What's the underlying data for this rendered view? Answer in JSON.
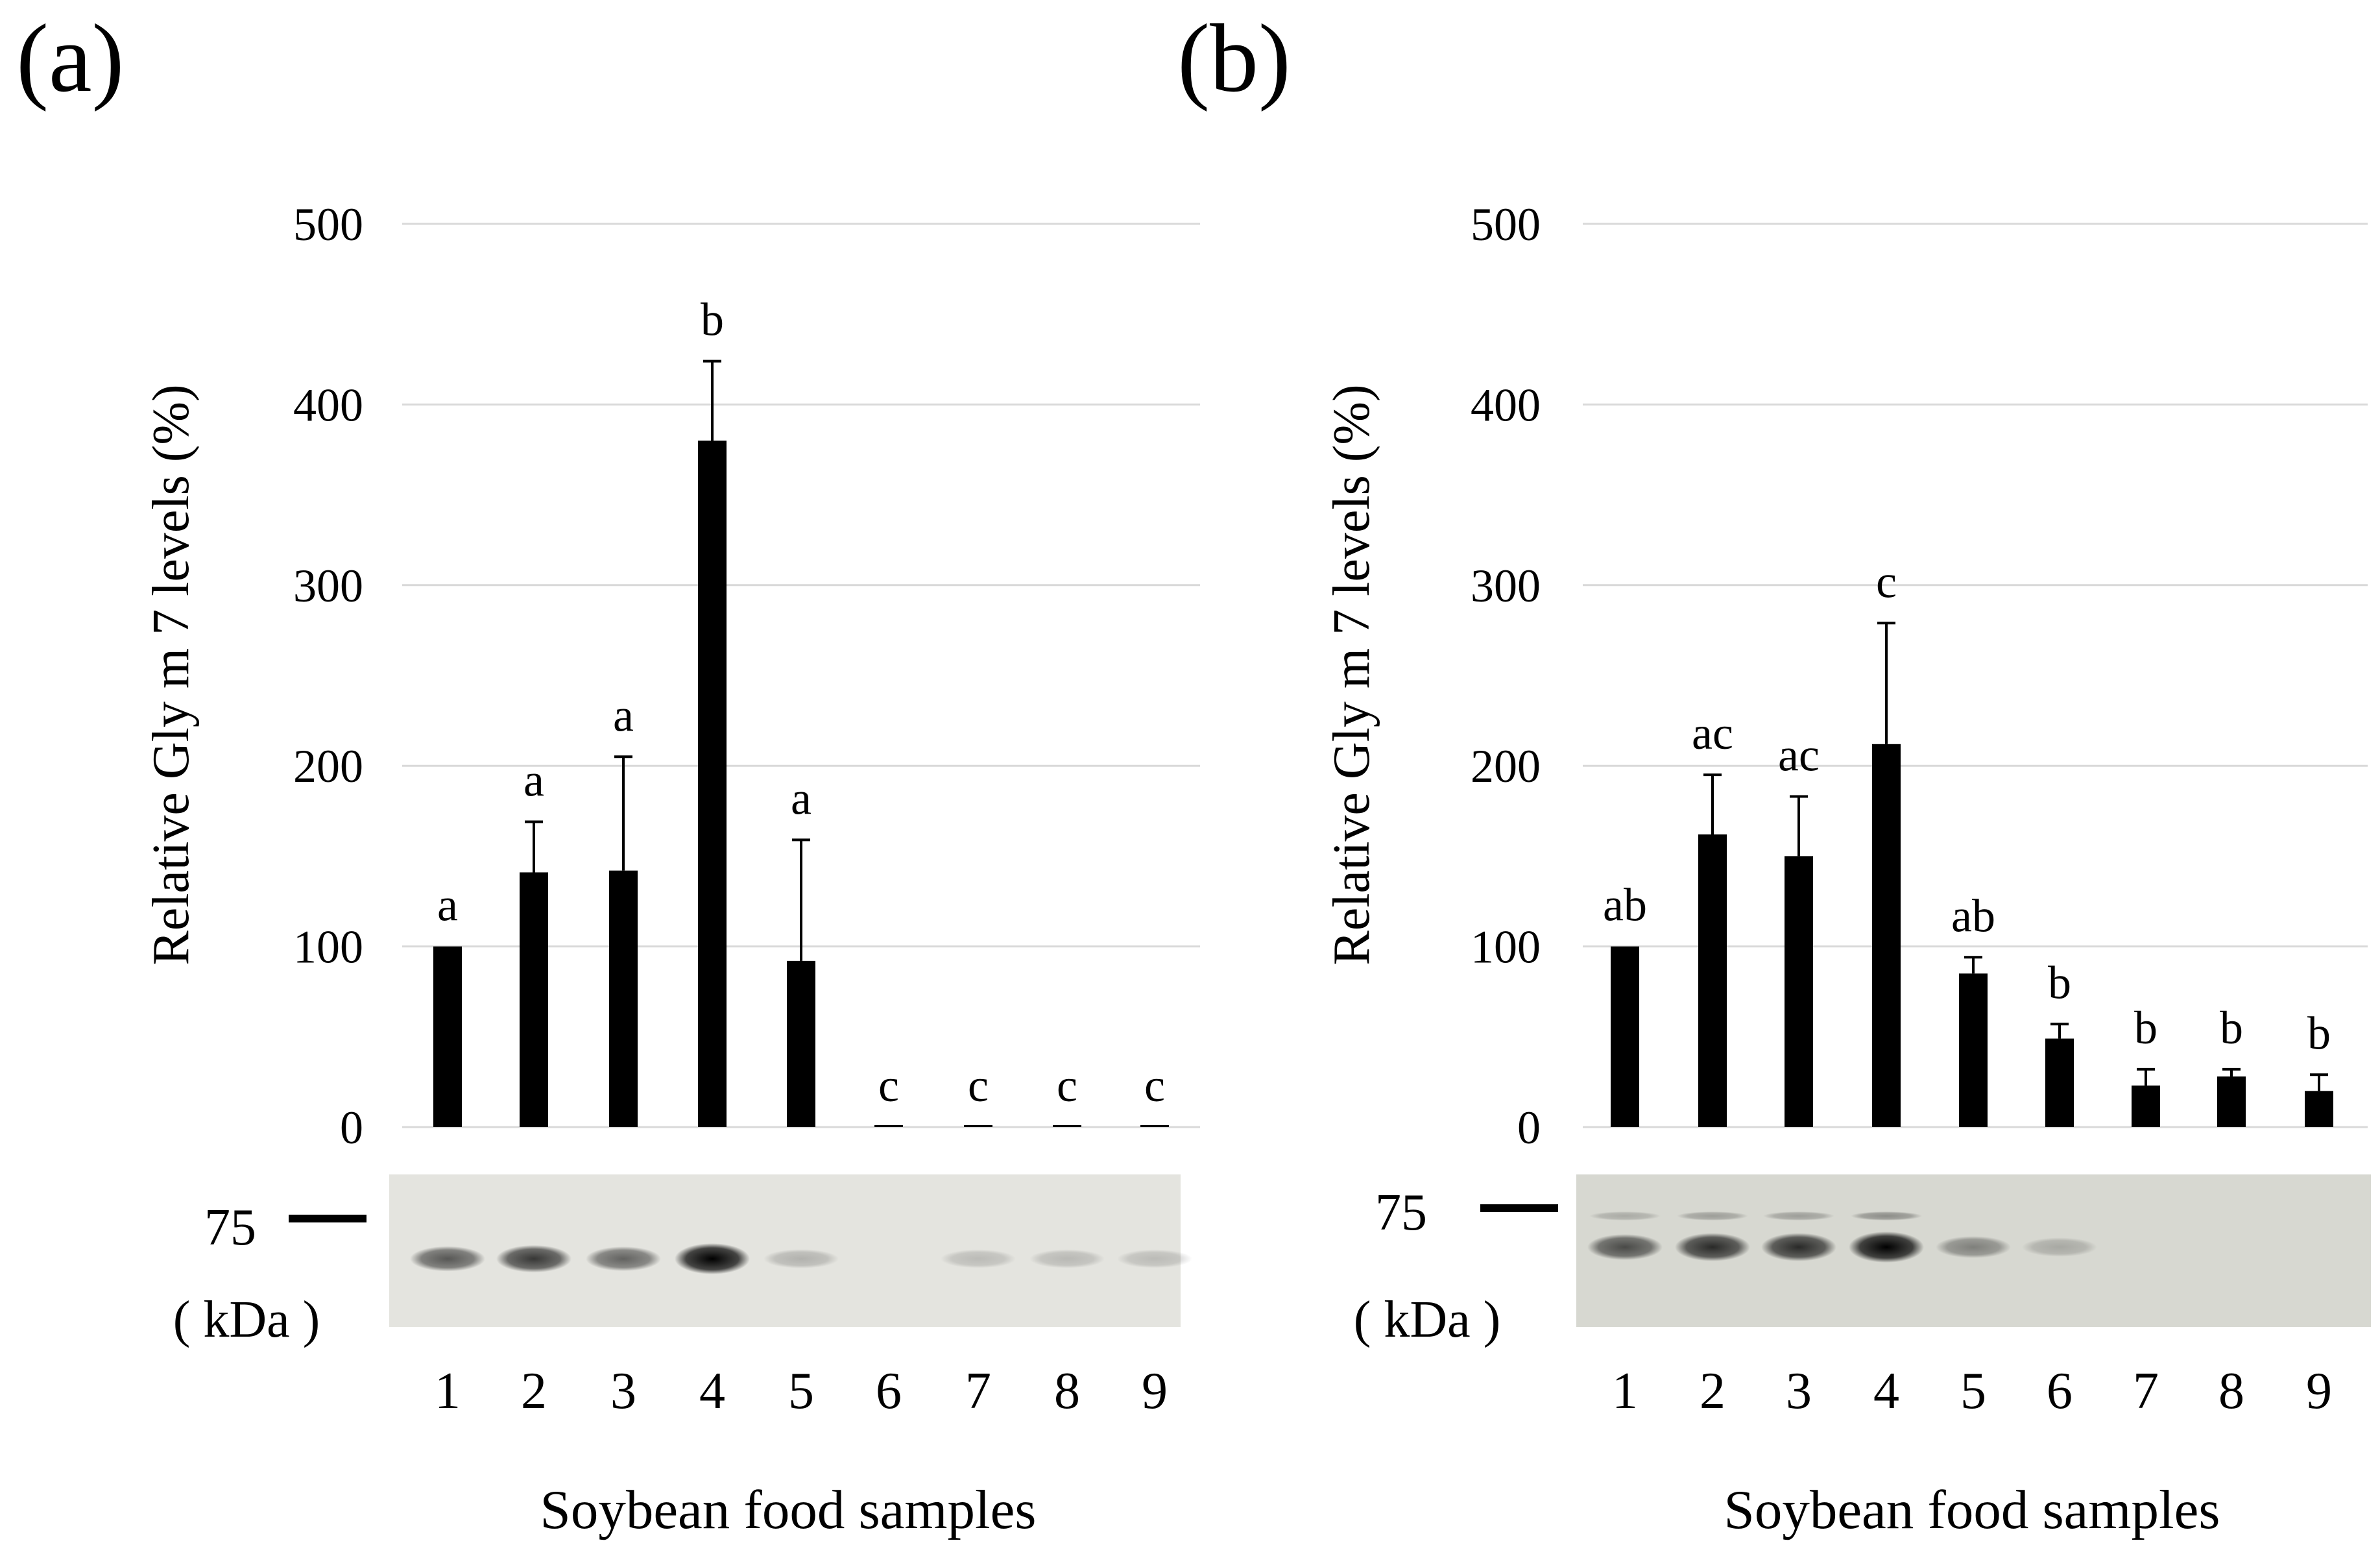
{
  "panels": [
    {
      "panel_label": "(a)",
      "blot": {
        "marker_label": "75",
        "unit_label": "( kDa )",
        "band_intensity": [
          0.55,
          0.72,
          0.5,
          1.0,
          0.08,
          0.0,
          0.04,
          0.05,
          0.03
        ]
      }
    },
    {
      "panel_label": "(b)",
      "blot": {
        "marker_label": "75",
        "unit_label": "( kDa )",
        "band_intensity": [
          0.6,
          0.78,
          0.78,
          1.0,
          0.3,
          0.08,
          0.0,
          0.0,
          0.0
        ]
      }
    }
  ],
  "chart_data": [
    {
      "type": "bar",
      "panel": "(a)",
      "title": "",
      "xlabel": "Soybean food samples",
      "ylabel": "Relative Gly m 7 levels (%)",
      "ylim": [
        0,
        500
      ],
      "yticks": [
        0,
        100,
        200,
        300,
        400,
        500
      ],
      "grid": true,
      "categories": [
        "1",
        "2",
        "3",
        "4",
        "5",
        "6",
        "7",
        "8",
        "9"
      ],
      "values": [
        100,
        141,
        142,
        380,
        92,
        0,
        0,
        0,
        0
      ],
      "errors": [
        0,
        28,
        63,
        44,
        67,
        0,
        0,
        0,
        0
      ],
      "significance_letters": [
        "a",
        "a",
        "a",
        "b",
        "a",
        "c",
        "c",
        "c",
        "c"
      ]
    },
    {
      "type": "bar",
      "panel": "(b)",
      "title": "",
      "xlabel": "Soybean food samples",
      "ylabel": "Relative Gly m 7 levels (%)",
      "ylim": [
        0,
        500
      ],
      "yticks": [
        0,
        100,
        200,
        300,
        400,
        500
      ],
      "grid": true,
      "categories": [
        "1",
        "2",
        "3",
        "4",
        "5",
        "6",
        "7",
        "8",
        "9"
      ],
      "values": [
        100,
        162,
        150,
        212,
        85,
        49,
        23,
        28,
        20
      ],
      "errors": [
        0,
        33,
        33,
        67,
        9,
        8,
        9,
        4,
        9
      ],
      "significance_letters": [
        "ab",
        "ac",
        "ac",
        "c",
        "ab",
        "b",
        "b",
        "b",
        "b"
      ]
    }
  ]
}
